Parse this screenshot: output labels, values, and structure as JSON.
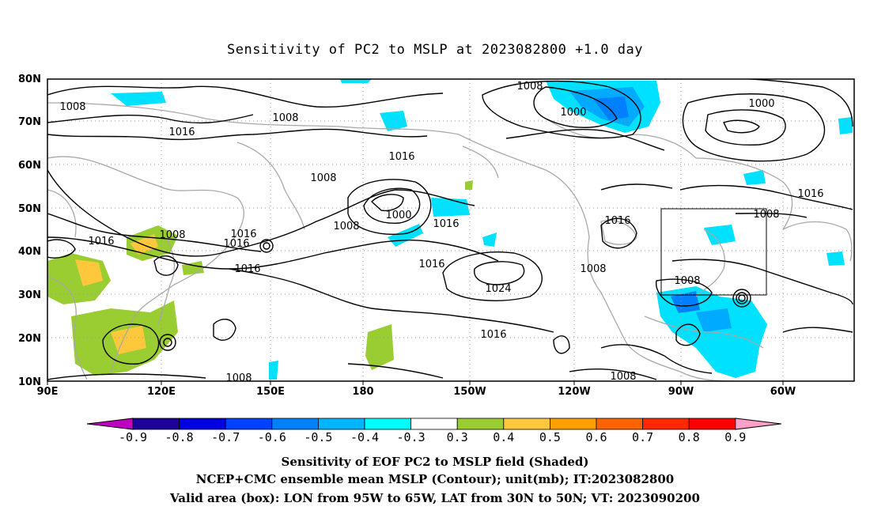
{
  "title": "Sensitivity of PC2 to MSLP at 2023082800 +1.0 day",
  "map": {
    "lon_labels": [
      "90E",
      "120E",
      "150E",
      "180",
      "150W",
      "120W",
      "90W",
      "60W"
    ],
    "lat_labels": [
      "10N",
      "20N",
      "30N",
      "40N",
      "50N",
      "60N",
      "70N",
      "80N"
    ],
    "contour_labels": [
      "1008",
      "1008",
      "1000",
      "1000",
      "1008",
      "1016",
      "1016",
      "1008",
      "1000",
      "1016",
      "1008",
      "1008",
      "1016",
      "1016",
      "1016",
      "1008",
      "1016",
      "1016",
      "1008",
      "1016",
      "1008",
      "1016",
      "1024",
      "1016",
      "1008",
      "1016",
      "1016",
      "1008"
    ],
    "colors": {
      "coast": "#a8a8a8",
      "contour": "#000000",
      "positive_0_3": "#9acd32",
      "positive_0_4": "#ffc83c",
      "negative_0_3": "#00e1ff",
      "negative_0_4": "#00aaff",
      "negative_0_5": "#0080ff"
    }
  },
  "colorbar": {
    "labels": [
      "-0.9",
      "-0.8",
      "-0.7",
      "-0.6",
      "-0.5",
      "-0.4",
      "-0.3",
      "0.3",
      "0.4",
      "0.5",
      "0.6",
      "0.7",
      "0.8",
      "0.9"
    ],
    "colors": [
      "#c000c0",
      "#1e009b",
      "#0000e1",
      "#0040ff",
      "#0080ff",
      "#00b4ff",
      "#00ffff",
      "#ffffff",
      "#9acd32",
      "#ffc83c",
      "#ffa000",
      "#ff6400",
      "#ff2800",
      "#ff0000",
      "#ffa0c8"
    ]
  },
  "captions": [
    "Sensitivity of EOF PC2 to MSLP field (Shaded)",
    "NCEP+CMC ensemble mean MSLP (Contour); unit(mb); IT:2023082800",
    "Valid area (box): LON from 95W to 65W, LAT from 30N to 50N; VT: 2023090200"
  ]
}
